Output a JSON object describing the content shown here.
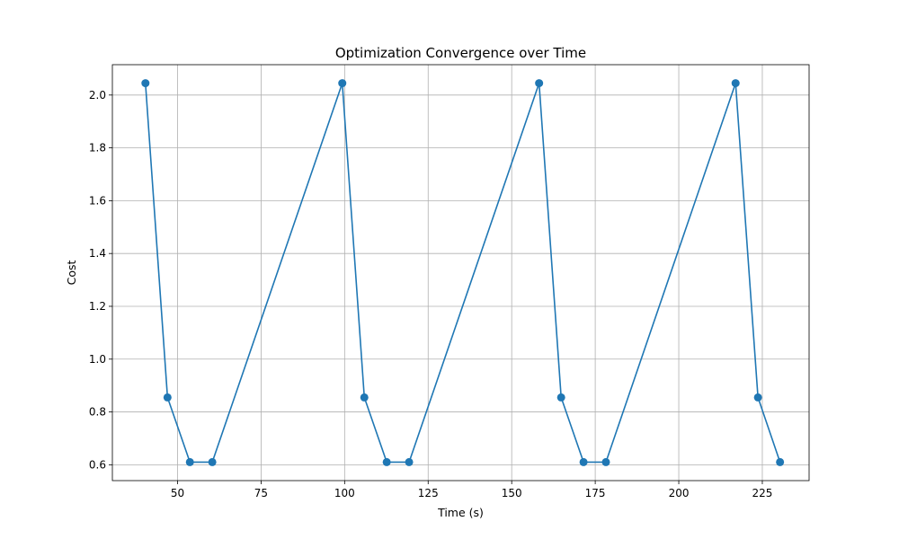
{
  "chart_data": {
    "type": "line",
    "title": "Optimization Convergence over Time",
    "xlabel": "Time (s)",
    "ylabel": "Cost",
    "xlim": [
      30.5,
      239.0
    ],
    "ylim": [
      0.54,
      2.115
    ],
    "xticks": [
      50,
      75,
      100,
      125,
      150,
      175,
      200,
      225
    ],
    "yticks": [
      0.6,
      0.8,
      1.0,
      1.2,
      1.4,
      1.6,
      1.8,
      2.0
    ],
    "grid": true,
    "color": "#1f77b4",
    "marker": "circle",
    "series": [
      {
        "x": [
          40.4,
          47.0,
          53.7,
          60.4,
          99.3,
          105.9,
          112.6,
          119.3,
          158.2,
          164.8,
          171.5,
          178.2,
          217.0,
          223.7,
          230.3
        ],
        "y": [
          2.045,
          0.855,
          0.61,
          0.61,
          2.045,
          0.855,
          0.61,
          0.61,
          2.045,
          0.855,
          0.61,
          0.61,
          2.045,
          0.855,
          0.61
        ]
      }
    ]
  }
}
